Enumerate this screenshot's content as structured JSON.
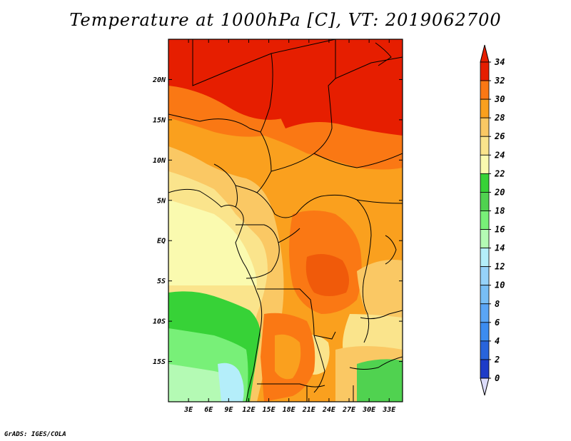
{
  "title": "Temperature at 1000hPa [C], VT: 2019062700",
  "footer": "GrADS: IGES/COLA",
  "map": {
    "lon_range": [
      0,
      35
    ],
    "lat_range": [
      -20,
      25
    ],
    "lon_ticks": [
      "3E",
      "6E",
      "9E",
      "12E",
      "15E",
      "18E",
      "21E",
      "24E",
      "27E",
      "30E",
      "33E"
    ],
    "lat_ticks": [
      "20N",
      "15N",
      "10N",
      "5N",
      "EQ",
      "5S",
      "10S",
      "15S"
    ]
  },
  "colorbar": {
    "levels": [
      "0",
      "2",
      "4",
      "6",
      "8",
      "10",
      "12",
      "14",
      "16",
      "18",
      "20",
      "22",
      "24",
      "26",
      "28",
      "30",
      "32",
      "34"
    ],
    "colors": [
      "#1e1e8c",
      "#1e3cc8",
      "#2864dc",
      "#3c8cf0",
      "#5aa5f5",
      "#78bef5",
      "#96d2fa",
      "#b4eefa",
      "#b4fab4",
      "#78f078",
      "#50d250",
      "#37d237",
      "#fafaaf",
      "#fae48c",
      "#fac864",
      "#faa01e",
      "#fa7814",
      "#e61e00"
    ]
  },
  "chart_data": {
    "type": "heatmap",
    "title": "Temperature at 1000hPa [C], VT: 2019062700",
    "xlabel": "",
    "ylabel": "",
    "x_ticks": [
      "3E",
      "6E",
      "9E",
      "12E",
      "15E",
      "18E",
      "21E",
      "24E",
      "27E",
      "30E",
      "33E"
    ],
    "y_ticks": [
      "20N",
      "15N",
      "10N",
      "5N",
      "EQ",
      "5S",
      "10S",
      "15S"
    ],
    "colorbar_levels": [
      0,
      2,
      4,
      6,
      8,
      10,
      12,
      14,
      16,
      18,
      20,
      22,
      24,
      26,
      28,
      30,
      32,
      34
    ]
  }
}
